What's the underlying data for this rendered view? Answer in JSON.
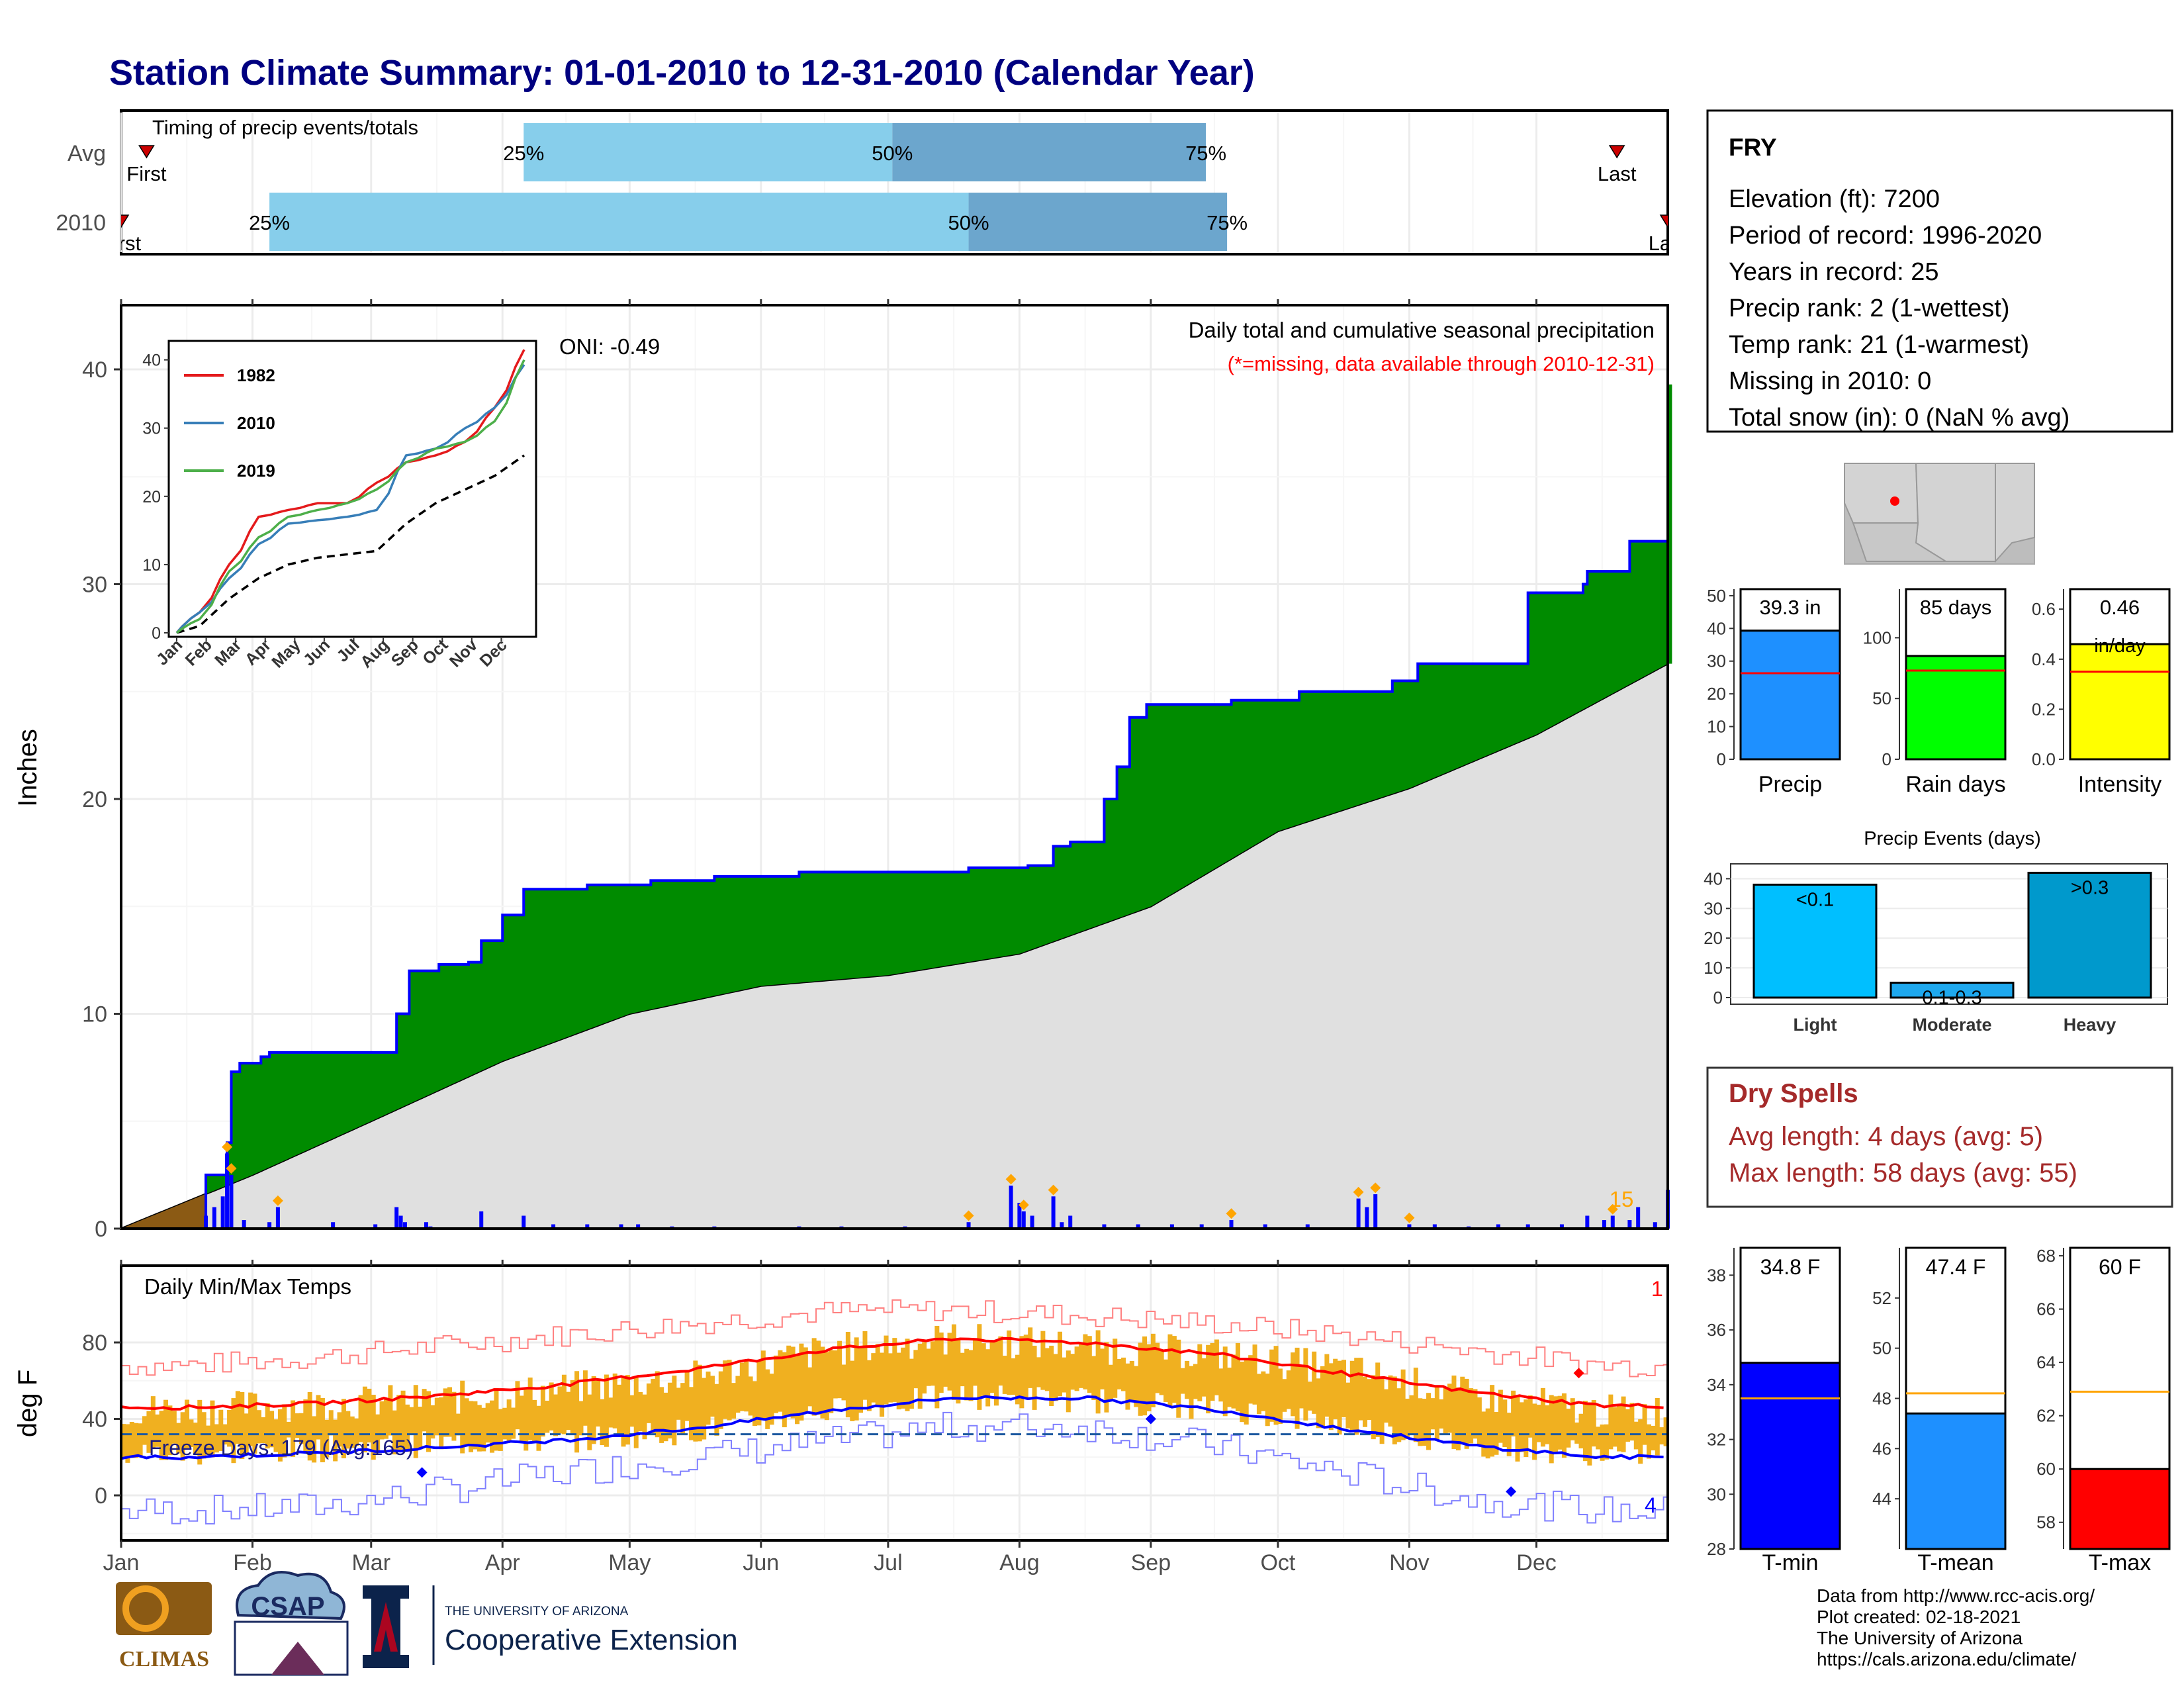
{
  "header": {
    "title": "Station Climate Summary: 01-01-2010 to 12-31-2010 (Calendar Year)"
  },
  "timing": {
    "title": "Timing of precip events/totals",
    "rows": [
      {
        "label": "Avg",
        "first_label": "First",
        "last_label": "Last",
        "q25": "25%",
        "q50": "50%",
        "q75": "75%",
        "p25_day": 95,
        "p50_day": 182,
        "p75_day": 256,
        "first_day": 6,
        "last_day": 353
      },
      {
        "label": "2010",
        "first_label": "First",
        "last_label": "Last",
        "q25": "25%",
        "q50": "50%",
        "q75": "75%",
        "p25_day": 35,
        "p50_day": 200,
        "p75_day": 261,
        "first_day": 0,
        "last_day": 365
      }
    ],
    "colors": {
      "light": "#87ceeb",
      "dark": "#6ca6cd",
      "marker": "#cc0000"
    }
  },
  "precip_panel": {
    "ylabel": "Inches",
    "oni": "ONI: -0.49",
    "caption1": "Daily total and cumulative seasonal precipitation",
    "caption2": "(*=missing, data available through 2010-12-31)",
    "yticks": [
      "0",
      "10",
      "20",
      "30",
      "40"
    ],
    "end_count": "15",
    "colors": {
      "cum_line": "#0000ff",
      "above": "#008b00",
      "below": "#8b5a14",
      "avg_fill": "#e0e0e0",
      "daily": "#0000ff",
      "extreme": "#ffa500"
    }
  },
  "inset": {
    "yticks": [
      "0",
      "10",
      "20",
      "30",
      "40"
    ],
    "xticks": [
      "Jan",
      "Feb",
      "Mar",
      "Apr",
      "May",
      "Jun",
      "Jul",
      "Aug",
      "Sep",
      "Oct",
      "Nov",
      "Dec"
    ],
    "legend": [
      {
        "name": "1982",
        "color": "#e41a1c"
      },
      {
        "name": "2010",
        "color": "#377eb8"
      },
      {
        "name": "2019",
        "color": "#4daf4a"
      }
    ]
  },
  "temp_panel": {
    "ylabel": "deg F",
    "title": "Daily Min/Max Temps",
    "freeze_text": "Freeze Days: 179 (Avg:165)",
    "yticks": [
      "0",
      "40",
      "80"
    ],
    "count_max": "1",
    "count_min": "4"
  },
  "months": [
    "Jan",
    "Feb",
    "Mar",
    "Apr",
    "May",
    "Jun",
    "Jul",
    "Aug",
    "Sep",
    "Oct",
    "Nov",
    "Dec"
  ],
  "station": {
    "name": "FRY",
    "lines": [
      "Elevation (ft): 7200",
      "Period of record: 1996-2020",
      "Years in record: 25",
      "Precip rank: 2 (1-wettest)",
      "Temp rank: 21 (1-warmest)",
      "Missing in 2010: 0",
      "Total snow (in): 0 (NaN % avg)"
    ]
  },
  "summary_bars": [
    {
      "key": "precip",
      "title": "39.3 in",
      "label": "Precip",
      "value": 39.3,
      "avg": 26.3,
      "ymax": 52,
      "ticks": [
        "0",
        "10",
        "20",
        "30",
        "40",
        "50"
      ],
      "tickvals": [
        0,
        10,
        20,
        30,
        40,
        50
      ],
      "color": "#1e90ff"
    },
    {
      "key": "raindays",
      "title": "85 days",
      "label": "Rain days",
      "value": 85,
      "avg": 73,
      "ymax": 140,
      "ticks": [
        "0",
        "50",
        "100"
      ],
      "tickvals": [
        0,
        50,
        100
      ],
      "color": "#00ff00"
    },
    {
      "key": "intensity",
      "title": "0.46",
      "title2": "in/day",
      "label": "Intensity",
      "value": 0.46,
      "avg": 0.35,
      "ymax": 0.68,
      "ticks": [
        "0.0",
        "0.2",
        "0.4",
        "0.6"
      ],
      "tickvals": [
        0,
        0.2,
        0.4,
        0.6
      ],
      "color": "#ffff00"
    }
  ],
  "precip_events": {
    "title": "Precip Events (days)",
    "ticks": [
      "0",
      "10",
      "20",
      "30",
      "40"
    ],
    "bars": [
      {
        "label": "Light",
        "value_label": "<0.1",
        "value": 38,
        "color": "#00bfff"
      },
      {
        "label": "Moderate",
        "value_label": "0.1-0.3",
        "value": 5,
        "color": "#1ea8ee"
      },
      {
        "label": "Heavy",
        "value_label": ">0.3",
        "value": 42,
        "color": "#0099cc"
      }
    ]
  },
  "dry_spells": {
    "title": "Dry Spells",
    "line1": "Avg length: 4 days (avg: 5)",
    "line2": "Max length: 58 days (avg: 55)",
    "color": "#a52a2a"
  },
  "temp_bars": [
    {
      "title": "34.8 F",
      "label": "T-min",
      "value": 34.8,
      "avg": 33.5,
      "ymin": 28,
      "ymax": 39,
      "ticks": [
        "28",
        "30",
        "32",
        "34",
        "36",
        "38"
      ],
      "tickvals": [
        28,
        30,
        32,
        34,
        36,
        38
      ],
      "color": "#0000ff"
    },
    {
      "title": "47.4 F",
      "label": "T-mean",
      "value": 47.4,
      "avg": 48.2,
      "ymin": 42,
      "ymax": 54,
      "ticks": [
        "44",
        "46",
        "48",
        "50",
        "52"
      ],
      "tickvals": [
        44,
        46,
        48,
        50,
        52
      ],
      "color": "#1e90ff"
    },
    {
      "title": "60 F",
      "label": "T-max",
      "value": 60,
      "avg": 62.9,
      "ymin": 57,
      "ymax": 68.3,
      "ticks": [
        "58",
        "60",
        "62",
        "64",
        "66",
        "68"
      ],
      "tickvals": [
        58,
        60,
        62,
        64,
        66,
        68
      ],
      "color": "#ff0000"
    }
  ],
  "footer": {
    "lines": [
      "Data from http://www.rcc-acis.org/",
      "Plot created: 02-18-2021",
      "The University of Arizona",
      "https://cals.arizona.edu/climate/"
    ]
  },
  "logos": {
    "climas": "CLIMAS",
    "csap": "CSAP",
    "ua_line1": "THE UNIVERSITY OF ARIZONA",
    "ua_line2": "Cooperative Extension"
  },
  "chart_data": [
    {
      "type": "area",
      "title": "Daily total and cumulative seasonal precipitation",
      "ylabel": "Inches",
      "ylim": [
        0,
        42
      ],
      "x_unit": "day of year 2010",
      "cumulative_2010": [
        [
          0,
          0
        ],
        [
          20,
          2.5
        ],
        [
          25,
          4.0
        ],
        [
          26,
          7.3
        ],
        [
          28,
          7.7
        ],
        [
          33,
          8.0
        ],
        [
          35,
          8.2
        ],
        [
          50,
          8.2
        ],
        [
          65,
          10.0
        ],
        [
          68,
          12.0
        ],
        [
          75,
          12.3
        ],
        [
          82,
          12.4
        ],
        [
          85,
          13.4
        ],
        [
          90,
          14.6
        ],
        [
          95,
          15.8
        ],
        [
          110,
          16.0
        ],
        [
          125,
          16.2
        ],
        [
          140,
          16.4
        ],
        [
          160,
          16.6
        ],
        [
          200,
          16.8
        ],
        [
          214,
          16.9
        ],
        [
          220,
          17.8
        ],
        [
          224,
          18.0
        ],
        [
          232,
          20.0
        ],
        [
          235,
          21.5
        ],
        [
          238,
          23.8
        ],
        [
          242,
          24.4
        ],
        [
          262,
          24.6
        ],
        [
          278,
          25.0
        ],
        [
          300,
          25.5
        ],
        [
          306,
          26.3
        ],
        [
          330,
          26.3
        ],
        [
          332,
          29.6
        ],
        [
          345,
          30.0
        ],
        [
          346,
          30.6
        ],
        [
          356,
          32.0
        ],
        [
          368,
          32.7
        ],
        [
          380,
          32.8
        ],
        [
          392,
          33.0
        ],
        [
          410,
          33.6
        ],
        [
          430,
          34.0
        ],
        [
          448,
          34.2
        ],
        [
          460,
          34.3
        ],
        [
          467,
          36.0
        ],
        [
          470,
          38.0
        ],
        [
          480,
          39.3
        ],
        [
          365,
          39.3
        ]
      ],
      "average_cumulative": [
        [
          0,
          0
        ],
        [
          31,
          2.5
        ],
        [
          59,
          5.0
        ],
        [
          90,
          7.8
        ],
        [
          120,
          10.0
        ],
        [
          151,
          11.3
        ],
        [
          181,
          11.8
        ],
        [
          212,
          12.8
        ],
        [
          243,
          15.0
        ],
        [
          273,
          18.5
        ],
        [
          304,
          20.5
        ],
        [
          334,
          23.0
        ],
        [
          365,
          26.3
        ]
      ],
      "daily_extreme_days": [
        25,
        26,
        37,
        200,
        210,
        213,
        220,
        262,
        292,
        296,
        304,
        352
      ],
      "daily_spike_days": [
        20,
        22,
        24,
        25,
        26,
        29,
        35,
        37,
        50,
        60,
        65,
        66,
        67,
        72,
        73,
        85,
        95,
        102,
        110,
        118,
        122,
        130,
        140,
        160,
        170,
        185,
        200,
        210,
        212,
        213,
        215,
        220,
        222,
        224,
        232,
        240,
        248,
        255,
        262,
        270,
        280,
        292,
        294,
        296,
        304,
        310,
        318,
        325,
        332,
        340,
        346,
        350,
        352,
        356,
        358,
        362,
        365
      ]
    },
    {
      "type": "line",
      "title": "inset cumulative precipitation",
      "x_unit": "month",
      "categories": [
        "Jan",
        "Feb",
        "Mar",
        "Apr",
        "May",
        "Jun",
        "Jul",
        "Aug",
        "Sep",
        "Oct",
        "Nov",
        "Dec"
      ],
      "ylim": [
        0,
        42
      ],
      "series": [
        {
          "name": "1982",
          "values": [
            3,
            10,
            17,
            18,
            19,
            19,
            22,
            25,
            26,
            28,
            33,
            41.5
          ]
        },
        {
          "name": "2010",
          "values": [
            3,
            8,
            13,
            16,
            16.5,
            17,
            18,
            26,
            27,
            30,
            33,
            39.3
          ]
        },
        {
          "name": "2019",
          "values": [
            2,
            9,
            14,
            17,
            18,
            19,
            21,
            25,
            27,
            28,
            31,
            40
          ]
        }
      ],
      "average_values": [
        1,
        5,
        8,
        10,
        11,
        11.5,
        12,
        16,
        19,
        21,
        23,
        26
      ]
    },
    {
      "type": "bar",
      "title": "Daily Min/Max Temps",
      "ylabel": "deg F",
      "ylim": [
        -18,
        98
      ],
      "categories": [
        "Jan",
        "Feb",
        "Mar",
        "Apr",
        "May",
        "Jun",
        "Jul",
        "Aug",
        "Sep",
        "Oct",
        "Nov",
        "Dec"
      ],
      "series": [
        {
          "name": "avg_max",
          "values": [
            46,
            48,
            52,
            58,
            66,
            76,
            82,
            80,
            74,
            64,
            54,
            47
          ]
        },
        {
          "name": "avg_min",
          "values": [
            20,
            22,
            25,
            29,
            35,
            44,
            51,
            51,
            45,
            35,
            26,
            20
          ]
        },
        {
          "name": "tmax_2010",
          "values": [
            45,
            48,
            50,
            56,
            62,
            76,
            82,
            78,
            74,
            66,
            52,
            44
          ]
        },
        {
          "name": "tmin_2010",
          "values": [
            22,
            24,
            27,
            29,
            34,
            44,
            52,
            50,
            46,
            37,
            26,
            22
          ]
        },
        {
          "name": "record_max",
          "values": [
            68,
            72,
            78,
            84,
            90,
            96,
            97,
            94,
            90,
            84,
            76,
            68
          ]
        },
        {
          "name": "record_min",
          "values": [
            -8,
            -6,
            2,
            12,
            20,
            28,
            36,
            36,
            26,
            12,
            -2,
            -8
          ]
        }
      ],
      "freeze_threshold": 32
    },
    {
      "type": "bar",
      "title": "Precip Events (days)",
      "categories": [
        "Light",
        "Moderate",
        "Heavy"
      ],
      "values": [
        38,
        5,
        42
      ]
    }
  ]
}
